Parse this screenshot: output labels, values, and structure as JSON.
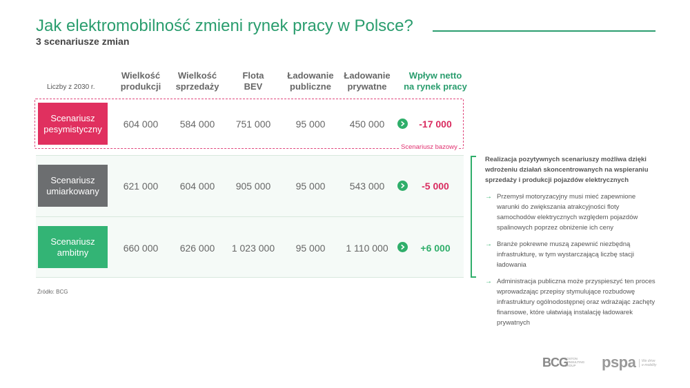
{
  "title": "Jak elektromobilność zmieni rynek pracy w Polsce?",
  "subtitle": "3 scenariusze zmian",
  "table": {
    "row_label": "Liczby z 2030 r.",
    "columns": [
      "Wielkość\nprodukcji",
      "Wielkość\nsprzedaży",
      "Flota\nBEV",
      "Ładowanie\npubliczne",
      "Ładowanie\nprywatne",
      "Wpływ netto\nna rynek pracy"
    ],
    "rows": [
      {
        "scenario": "Scenariusz\npesymistyczny",
        "values": [
          "604 000",
          "584 000",
          "751 000",
          "95 000",
          "450 000"
        ],
        "impact": "-17 000"
      },
      {
        "scenario": "Scenariusz\numiarkowany",
        "values": [
          "621 000",
          "604 000",
          "905 000",
          "95 000",
          "543 000"
        ],
        "impact": "-5 000"
      },
      {
        "scenario": "Scenariusz\nambitny",
        "values": [
          "660 000",
          "626 000",
          "1 023 000",
          "95 000",
          "1 110 000"
        ],
        "impact": "+6 000"
      }
    ],
    "baseline_label": "Scenariusz bazowy"
  },
  "source": "Źródło: BCG",
  "right_panel": {
    "title": "Realizacja pozytywnych scenariuszy możliwa dzięki wdrożeniu działań skoncentrowanych na wspieraniu sprzedaży i produkcji pojazdów elektrycznych",
    "arrow_glyph": "→",
    "bullets": [
      "Przemysł motoryzacyjny musi mieć zapewnione warunki do zwiększania atrakcyjności floty samochodów elektrycznych względem pojazdów spalinowych poprzez obniżenie ich ceny",
      "Branże pokrewne muszą zapewnić niezbędną infrastrukturę, w tym wystarczającą liczbę stacji ładowania",
      "Administracja publiczna może przyspieszyć ten proces wprowadzając przepisy stymulujące rozbudowę infrastruktury ogólnodostępnej oraz wdrażając zachęty finansowe, które ułatwiają instalację ładowarek prywatnych"
    ]
  },
  "logos": {
    "bcg": "BCG",
    "bcg_sub": "BOSTON CONSULTING GROUP",
    "pspa": "pspa",
    "pspa_sub": "We drive e-mobility"
  },
  "colors": {
    "accent_green": "#2a9d6e",
    "pessimistic": "#e0305f",
    "moderate": "#6c6e70",
    "ambitious": "#33b475"
  }
}
